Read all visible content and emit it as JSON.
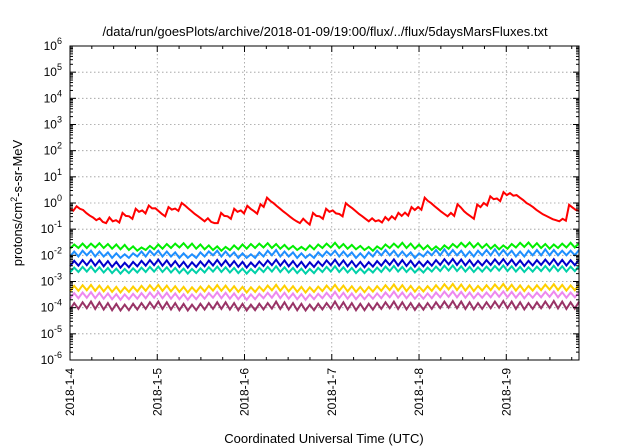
{
  "chart_data": {
    "type": "line",
    "title": "/data/run/goesPlots/archive/2018-01-09/19:00/flux/../flux/5daysMarsFluxes.txt",
    "xlabel": "Coordinated Universal Time (UTC)",
    "ylabel": {
      "base": "protons/cm",
      "sup": "2",
      "rest": "-s-sr-MeV"
    },
    "y_scale": "log",
    "ylim": [
      1e-06,
      1000000.0
    ],
    "xlim": [
      "2018-1-4 00:00",
      "2018-1-9 20:00"
    ],
    "y_ticks": [
      {
        "base": "10",
        "exp": "-6"
      },
      {
        "base": "10",
        "exp": "-5"
      },
      {
        "base": "10",
        "exp": "-4"
      },
      {
        "base": "10",
        "exp": "-3"
      },
      {
        "base": "10",
        "exp": "-2"
      },
      {
        "base": "10",
        "exp": "-1"
      },
      {
        "base": "10",
        "exp": "0"
      },
      {
        "base": "10",
        "exp": "1"
      },
      {
        "base": "10",
        "exp": "2"
      },
      {
        "base": "10",
        "exp": "3"
      },
      {
        "base": "10",
        "exp": "4"
      },
      {
        "base": "10",
        "exp": "5"
      },
      {
        "base": "10",
        "exp": "6"
      }
    ],
    "x_ticks": [
      "2018-1-4",
      "2018-1-5",
      "2018-1-6",
      "2018-1-7",
      "2018-1-8",
      "2018-1-9"
    ],
    "grid": true,
    "legend": "none",
    "sampling": "hourly, sawtooth pattern",
    "series": [
      {
        "color": "#ff0000",
        "values": [
          0.61,
          0.51,
          0.75,
          0.6,
          0.54,
          0.41,
          0.33,
          0.28,
          0.22,
          0.26,
          0.19,
          0.17,
          0.28,
          0.2,
          0.22,
          0.18,
          0.42,
          0.32,
          0.31,
          0.25,
          0.6,
          0.46,
          0.52,
          0.4,
          0.8,
          0.62,
          0.63,
          0.49,
          0.38,
          0.31,
          0.7,
          0.56,
          0.61,
          0.5,
          1.0,
          0.81,
          0.62,
          0.49,
          0.38,
          0.31,
          0.25,
          0.2,
          0.26,
          0.19,
          0.17,
          0.17,
          0.42,
          0.32,
          0.31,
          0.25,
          0.6,
          0.46,
          0.52,
          0.4,
          0.78,
          0.6,
          0.49,
          0.39,
          0.9,
          0.71,
          1.6,
          1.2,
          0.98,
          0.76,
          0.6,
          0.47,
          0.38,
          0.3,
          0.24,
          0.2,
          0.17,
          0.25,
          0.19,
          0.15,
          0.42,
          0.32,
          0.31,
          0.25,
          0.6,
          0.46,
          0.52,
          0.4,
          0.38,
          0.31,
          0.98,
          0.77,
          0.63,
          0.49,
          0.38,
          0.31,
          0.25,
          0.2,
          0.26,
          0.2,
          0.22,
          0.18,
          0.29,
          0.22,
          0.31,
          0.24,
          0.42,
          0.32,
          0.43,
          0.33,
          0.7,
          0.54,
          0.7,
          0.55,
          1.6,
          1.2,
          0.98,
          0.76,
          0.6,
          0.47,
          0.38,
          0.31,
          0.42,
          0.32,
          0.9,
          0.68,
          0.48,
          0.38,
          0.31,
          0.25,
          0.88,
          0.7,
          1.0,
          0.8,
          1.8,
          1.4,
          1.48,
          1.18,
          2.6,
          2.0,
          2.4,
          1.9,
          2.0,
          1.6,
          1.3,
          1.0,
          0.85,
          0.7,
          0.55,
          0.45,
          0.37,
          0.32,
          0.28,
          0.24,
          0.22,
          0.2,
          0.25,
          0.21,
          0.85,
          0.68,
          0.55,
          0.5
        ]
      },
      {
        "color": "#00ee00",
        "values": [
          0.018,
          0.026,
          0.019,
          0.028,
          0.019,
          0.028,
          0.02,
          0.029,
          0.019,
          0.027,
          0.018,
          0.026,
          0.017,
          0.025,
          0.016,
          0.022,
          0.015,
          0.02,
          0.016,
          0.023,
          0.017,
          0.026,
          0.018,
          0.027,
          0.019,
          0.028,
          0.02,
          0.029,
          0.019,
          0.028,
          0.018,
          0.026,
          0.017,
          0.024,
          0.016,
          0.022,
          0.015,
          0.021,
          0.016,
          0.024,
          0.017,
          0.026,
          0.018,
          0.027,
          0.019,
          0.028,
          0.02,
          0.029,
          0.019,
          0.027,
          0.018,
          0.025,
          0.017,
          0.023,
          0.016,
          0.021,
          0.016,
          0.024,
          0.017,
          0.026,
          0.019,
          0.028,
          0.02,
          0.03,
          0.019,
          0.027,
          0.018,
          0.025,
          0.017,
          0.023,
          0.016,
          0.021,
          0.015,
          0.022,
          0.017,
          0.026,
          0.019,
          0.028,
          0.02,
          0.03,
          0.019,
          0.028,
          0.018,
          0.026,
          0.017,
          0.024,
          0.016,
          0.022,
          0.016,
          0.024,
          0.018,
          0.027,
          0.02,
          0.03,
          0.021,
          0.031,
          0.02,
          0.029,
          0.019,
          0.027,
          0.018,
          0.025,
          0.017,
          0.024,
          0.018,
          0.027,
          0.02,
          0.03,
          0.021,
          0.031,
          0.02,
          0.029,
          0.019,
          0.027,
          0.018,
          0.026,
          0.019,
          0.028,
          0.02,
          0.03,
          0.02,
          0.029
        ]
      },
      {
        "color": "#1e8fff",
        "values": [
          0.009,
          0.014,
          0.009,
          0.015,
          0.01,
          0.015,
          0.009,
          0.014,
          0.009,
          0.013,
          0.008,
          0.012,
          0.008,
          0.011,
          0.008,
          0.012,
          0.009,
          0.014,
          0.009,
          0.015,
          0.01,
          0.015,
          0.009,
          0.014,
          0.009,
          0.013,
          0.008,
          0.012,
          0.008,
          0.011,
          0.008,
          0.013,
          0.009,
          0.014,
          0.01,
          0.015,
          0.009,
          0.014,
          0.009,
          0.013,
          0.008,
          0.012,
          0.008,
          0.011,
          0.008,
          0.013,
          0.009,
          0.015,
          0.01,
          0.016,
          0.009,
          0.014,
          0.009,
          0.013,
          0.008,
          0.012,
          0.008,
          0.011,
          0.008,
          0.013,
          0.009,
          0.014,
          0.01,
          0.015,
          0.009,
          0.014,
          0.009,
          0.013,
          0.008,
          0.012,
          0.008,
          0.013,
          0.009,
          0.015,
          0.01,
          0.016,
          0.01,
          0.015,
          0.009,
          0.014,
          0.009,
          0.013,
          0.008,
          0.012,
          0.009,
          0.014,
          0.01,
          0.016,
          0.01,
          0.017,
          0.01,
          0.016,
          0.01,
          0.015,
          0.009,
          0.014,
          0.009,
          0.015,
          0.01,
          0.016,
          0.01,
          0.017,
          0.01,
          0.016,
          0.01,
          0.015,
          0.009,
          0.014,
          0.009,
          0.015,
          0.01,
          0.016,
          0.01,
          0.017,
          0.01,
          0.016,
          0.01,
          0.015,
          0.01,
          0.015,
          0.01,
          0.016
        ]
      },
      {
        "color": "#0000cc",
        "values": [
          0.0038,
          0.0062,
          0.004,
          0.0066,
          0.0042,
          0.0068,
          0.004,
          0.0064,
          0.0038,
          0.006,
          0.0036,
          0.0056,
          0.0034,
          0.0052,
          0.0035,
          0.0056,
          0.0038,
          0.0062,
          0.004,
          0.0066,
          0.0042,
          0.0068,
          0.004,
          0.0064,
          0.0038,
          0.006,
          0.0036,
          0.0056,
          0.0034,
          0.0054,
          0.0036,
          0.0058,
          0.0038,
          0.0063,
          0.0041,
          0.0067,
          0.004,
          0.0064,
          0.0038,
          0.006,
          0.0036,
          0.0056,
          0.0034,
          0.0053,
          0.0036,
          0.0058,
          0.0039,
          0.0064,
          0.0042,
          0.0068,
          0.004,
          0.0064,
          0.0038,
          0.006,
          0.0036,
          0.0056,
          0.0034,
          0.0054,
          0.0036,
          0.0058,
          0.0039,
          0.0064,
          0.0042,
          0.0068,
          0.004,
          0.0064,
          0.0038,
          0.006,
          0.0036,
          0.0056,
          0.0035,
          0.0055,
          0.0037,
          0.006,
          0.004,
          0.0066,
          0.0043,
          0.007,
          0.0041,
          0.0066,
          0.0039,
          0.0062,
          0.0037,
          0.0058,
          0.0038,
          0.006,
          0.004,
          0.0066,
          0.0043,
          0.0071,
          0.0045,
          0.0073,
          0.0043,
          0.0069,
          0.0041,
          0.0065,
          0.0039,
          0.0062,
          0.0041,
          0.0066,
          0.0043,
          0.007,
          0.0045,
          0.0072,
          0.0043,
          0.0068,
          0.0041,
          0.0064,
          0.0039,
          0.0062,
          0.0041,
          0.0066,
          0.0043,
          0.0069,
          0.0044,
          0.0071,
          0.0042,
          0.0067,
          0.0041,
          0.0065,
          0.0042,
          0.0068
        ]
      },
      {
        "color": "#00d0a8",
        "values": [
          0.0022,
          0.0034,
          0.0023,
          0.0036,
          0.0024,
          0.0037,
          0.0023,
          0.0035,
          0.0022,
          0.0033,
          0.0021,
          0.0031,
          0.002,
          0.003,
          0.0021,
          0.0032,
          0.0022,
          0.0034,
          0.0023,
          0.0036,
          0.0024,
          0.0037,
          0.0023,
          0.0035,
          0.0022,
          0.0033,
          0.0021,
          0.0031,
          0.002,
          0.003,
          0.0021,
          0.0032,
          0.0022,
          0.0035,
          0.0024,
          0.0037,
          0.0023,
          0.0035,
          0.0022,
          0.0033,
          0.0021,
          0.0031,
          0.002,
          0.003,
          0.0021,
          0.0033,
          0.0023,
          0.0036,
          0.0024,
          0.0038,
          0.0023,
          0.0035,
          0.0022,
          0.0033,
          0.0021,
          0.0031,
          0.002,
          0.003,
          0.0021,
          0.0033,
          0.0023,
          0.0036,
          0.0024,
          0.0038,
          0.0023,
          0.0035,
          0.0022,
          0.0033,
          0.0021,
          0.0031,
          0.0021,
          0.0031,
          0.0022,
          0.0034,
          0.0023,
          0.0037,
          0.0025,
          0.0039,
          0.0024,
          0.0036,
          0.0023,
          0.0034,
          0.0022,
          0.0032,
          0.0022,
          0.0034,
          0.0024,
          0.0037,
          0.0025,
          0.004,
          0.0026,
          0.0041,
          0.0025,
          0.0038,
          0.0024,
          0.0036,
          0.0023,
          0.0035,
          0.0024,
          0.0037,
          0.0025,
          0.0039,
          0.0026,
          0.0041,
          0.0025,
          0.0038,
          0.0024,
          0.0036,
          0.0023,
          0.0035,
          0.0024,
          0.0037,
          0.0025,
          0.0039,
          0.0025,
          0.004,
          0.0025,
          0.0038,
          0.0024,
          0.0037,
          0.0025,
          0.0039
        ]
      },
      {
        "color": "#ffd000",
        "values": [
          0.00042,
          0.00068,
          0.00044,
          0.00072,
          0.00046,
          0.00074,
          0.00044,
          0.0007,
          0.00042,
          0.00066,
          0.0004,
          0.00062,
          0.00038,
          0.0006,
          0.0004,
          0.00064,
          0.00042,
          0.00068,
          0.00044,
          0.00072,
          0.00046,
          0.00074,
          0.00044,
          0.0007,
          0.00042,
          0.00066,
          0.0004,
          0.00062,
          0.00038,
          0.0006,
          0.0004,
          0.00064,
          0.00042,
          0.00068,
          0.00045,
          0.00073,
          0.00044,
          0.0007,
          0.00042,
          0.00066,
          0.0004,
          0.00062,
          0.00038,
          0.0006,
          0.0004,
          0.00064,
          0.00043,
          0.0007,
          0.00046,
          0.00075,
          0.00044,
          0.0007,
          0.00042,
          0.00066,
          0.0004,
          0.00062,
          0.00038,
          0.0006,
          0.0004,
          0.00064,
          0.00043,
          0.0007,
          0.00046,
          0.00075,
          0.00044,
          0.0007,
          0.00042,
          0.00066,
          0.0004,
          0.00062,
          0.00039,
          0.00062,
          0.00041,
          0.00066,
          0.00044,
          0.00072,
          0.00047,
          0.00077,
          0.00045,
          0.00072,
          0.00043,
          0.00068,
          0.00041,
          0.00064,
          0.00042,
          0.00066,
          0.00044,
          0.00072,
          0.00047,
          0.00078,
          0.0005,
          0.0008,
          0.00047,
          0.00076,
          0.00045,
          0.00072,
          0.00043,
          0.00068,
          0.00045,
          0.00072,
          0.00047,
          0.00077,
          0.0005,
          0.0008,
          0.00047,
          0.00075,
          0.00045,
          0.00071,
          0.00043,
          0.00068,
          0.00045,
          0.00072,
          0.00047,
          0.00076,
          0.00049,
          0.00079,
          0.00047,
          0.00074,
          0.00045,
          0.00071,
          0.00046,
          0.00074
        ]
      },
      {
        "color": "#ee88ee",
        "values": [
          0.00022,
          0.00036,
          0.00023,
          0.00038,
          0.00024,
          0.00039,
          0.00023,
          0.00037,
          0.00022,
          0.00035,
          0.00021,
          0.00033,
          0.0002,
          0.00032,
          0.00021,
          0.00034,
          0.00022,
          0.00036,
          0.00023,
          0.00038,
          0.00024,
          0.00039,
          0.00023,
          0.00037,
          0.00022,
          0.00035,
          0.00021,
          0.00033,
          0.0002,
          0.00032,
          0.00021,
          0.00034,
          0.00022,
          0.00036,
          0.00024,
          0.00039,
          0.00023,
          0.00037,
          0.00022,
          0.00035,
          0.00021,
          0.00033,
          0.0002,
          0.00032,
          0.00021,
          0.00034,
          0.00023,
          0.00037,
          0.00024,
          0.0004,
          0.00023,
          0.00037,
          0.00022,
          0.00035,
          0.00021,
          0.00033,
          0.0002,
          0.00032,
          0.00021,
          0.00034,
          0.00023,
          0.00037,
          0.00024,
          0.0004,
          0.00023,
          0.00037,
          0.00022,
          0.00035,
          0.00021,
          0.00033,
          0.00021,
          0.00033,
          0.00022,
          0.00035,
          0.00023,
          0.00038,
          0.00025,
          0.00041,
          0.00024,
          0.00038,
          0.00023,
          0.00036,
          0.00022,
          0.00034,
          0.00022,
          0.00035,
          0.00023,
          0.00038,
          0.00025,
          0.00041,
          0.00026,
          0.00042,
          0.00025,
          0.0004,
          0.00024,
          0.00038,
          0.00023,
          0.00036,
          0.00024,
          0.00038,
          0.00025,
          0.00041,
          0.00026,
          0.00042,
          0.00025,
          0.0004,
          0.00024,
          0.00038,
          0.00023,
          0.00036,
          0.00024,
          0.00038,
          0.00025,
          0.0004,
          0.00026,
          0.00042,
          0.00025,
          0.00039,
          0.00024,
          0.00038,
          0.00025,
          0.00039
        ]
      },
      {
        "color": "#993366",
        "values": [
          8.5e-05,
          0.00015,
          9e-05,
          0.00016,
          9.5e-05,
          0.00017,
          9e-05,
          0.00016,
          8.5e-05,
          0.00015,
          8e-05,
          0.00014,
          7.8e-05,
          0.00013,
          8e-05,
          0.00014,
          8.5e-05,
          0.00015,
          9e-05,
          0.00016,
          9.5e-05,
          0.00017,
          9e-05,
          0.00016,
          8.5e-05,
          0.00015,
          8e-05,
          0.00014,
          7.8e-05,
          0.00013,
          8e-05,
          0.00014,
          8.5e-05,
          0.00015,
          9e-05,
          0.00016,
          9e-05,
          0.00016,
          8.5e-05,
          0.00015,
          8e-05,
          0.00014,
          7.8e-05,
          0.00013,
          8e-05,
          0.00014,
          8.6e-05,
          0.00015,
          9.2e-05,
          0.00017,
          9e-05,
          0.00016,
          8.5e-05,
          0.00015,
          8e-05,
          0.00014,
          7.8e-05,
          0.00013,
          8e-05,
          0.00014,
          8.6e-05,
          0.00015,
          9.2e-05,
          0.00017,
          9e-05,
          0.00016,
          8.5e-05,
          0.00015,
          8e-05,
          0.00014,
          8e-05,
          0.00014,
          8.4e-05,
          0.00015,
          9e-05,
          0.00016,
          9.5e-05,
          0.00017,
          9e-05,
          0.00016,
          8.6e-05,
          0.00015,
          8.2e-05,
          0.00014,
          8.4e-05,
          0.00015,
          9e-05,
          0.00016,
          9.6e-05,
          0.00017,
          0.0001,
          0.00018,
          9.5e-05,
          0.00017,
          9e-05,
          0.00016,
          8.6e-05,
          0.00015,
          9e-05,
          0.00016,
          9.5e-05,
          0.00017,
          0.0001,
          0.00018,
          9.5e-05,
          0.00017,
          9e-05,
          0.00016,
          8.6e-05,
          0.00015,
          9e-05,
          0.00016,
          9.5e-05,
          0.00017,
          9.8e-05,
          0.00018,
          9.4e-05,
          0.00017,
          9e-05,
          0.00016,
          9.2e-05,
          0.00017
        ]
      }
    ]
  }
}
